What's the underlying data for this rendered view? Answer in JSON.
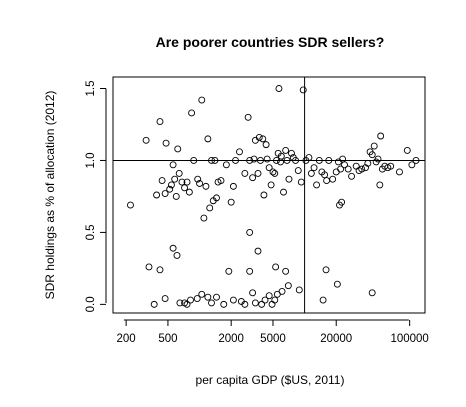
{
  "chart_data": {
    "type": "scatter",
    "title": "Are poorer countries SDR sellers?",
    "xlabel": "per capita GDP ($US, 2011)",
    "ylabel": "SDR holdings as % of allocation (2012)",
    "x_scale": "log",
    "xlim": [
      150,
      140000
    ],
    "ylim": [
      -0.06,
      1.58
    ],
    "x_ticks": [
      200,
      500,
      2000,
      5000,
      20000,
      100000
    ],
    "x_tick_labels": [
      "200",
      "500",
      "2000",
      "5000",
      "20000",
      "100000"
    ],
    "y_ticks": [
      0.0,
      0.5,
      1.0,
      1.5
    ],
    "y_tick_labels": [
      "0.0",
      "0.5",
      "1.0",
      "1.5"
    ],
    "reference_lines": {
      "horizontal_y": 1.0,
      "vertical_x": 10000
    },
    "grid": false,
    "legend": "none",
    "marker": "open-circle",
    "points": [
      [
        220,
        0.69
      ],
      [
        310,
        1.14
      ],
      [
        390,
        0.76
      ],
      [
        420,
        1.27
      ],
      [
        440,
        0.86
      ],
      [
        470,
        0.77
      ],
      [
        480,
        1.12
      ],
      [
        520,
        0.8
      ],
      [
        540,
        0.83
      ],
      [
        560,
        0.97
      ],
      [
        580,
        0.87
      ],
      [
        600,
        0.75
      ],
      [
        620,
        1.08
      ],
      [
        640,
        0.91
      ],
      [
        680,
        0.85
      ],
      [
        720,
        0.81
      ],
      [
        760,
        0.85
      ],
      [
        800,
        0.78
      ],
      [
        840,
        1.33
      ],
      [
        880,
        1.0
      ],
      [
        960,
        0.87
      ],
      [
        1000,
        0.84
      ],
      [
        1050,
        1.42
      ],
      [
        1100,
        0.6
      ],
      [
        1150,
        0.82
      ],
      [
        1200,
        1.15
      ],
      [
        1250,
        0.67
      ],
      [
        1300,
        1.0
      ],
      [
        1350,
        0.72
      ],
      [
        1400,
        1.0
      ],
      [
        1450,
        0.74
      ],
      [
        1500,
        0.85
      ],
      [
        1600,
        0.86
      ],
      [
        1800,
        0.97
      ],
      [
        2000,
        0.71
      ],
      [
        2100,
        0.82
      ],
      [
        2200,
        1.0
      ],
      [
        2400,
        1.06
      ],
      [
        2700,
        0.91
      ],
      [
        2900,
        1.3
      ],
      [
        3000,
        1.0
      ],
      [
        3200,
        0.88
      ],
      [
        3300,
        1.01
      ],
      [
        3400,
        1.14
      ],
      [
        3600,
        0.91
      ],
      [
        3700,
        1.16
      ],
      [
        3800,
        1.0
      ],
      [
        4000,
        1.15
      ],
      [
        4100,
        0.76
      ],
      [
        4300,
        1.11
      ],
      [
        4400,
        1.01
      ],
      [
        4600,
        0.95
      ],
      [
        4800,
        0.83
      ],
      [
        5000,
        0.92
      ],
      [
        5200,
        0.91
      ],
      [
        5400,
        1.0
      ],
      [
        5600,
        1.05
      ],
      [
        5700,
        1.5
      ],
      [
        5900,
        0.99
      ],
      [
        6000,
        1.03
      ],
      [
        6300,
        0.78
      ],
      [
        6600,
        1.07
      ],
      [
        6800,
        1.0
      ],
      [
        7100,
        0.87
      ],
      [
        7500,
        1.05
      ],
      [
        7800,
        1.02
      ],
      [
        8200,
        1.0
      ],
      [
        8700,
        0.93
      ],
      [
        9300,
        0.85
      ],
      [
        9700,
        1.49
      ],
      [
        10300,
        1.0
      ],
      [
        11000,
        1.02
      ],
      [
        11600,
        0.91
      ],
      [
        12300,
        0.95
      ],
      [
        13000,
        0.83
      ],
      [
        13800,
        1.0
      ],
      [
        14600,
        0.92
      ],
      [
        15500,
        0.9
      ],
      [
        16200,
        0.86
      ],
      [
        17000,
        1.0
      ],
      [
        18500,
        0.87
      ],
      [
        20000,
        0.92
      ],
      [
        21000,
        0.99
      ],
      [
        22000,
        0.94
      ],
      [
        23000,
        1.01
      ],
      [
        24000,
        0.97
      ],
      [
        26000,
        0.94
      ],
      [
        28000,
        0.89
      ],
      [
        31000,
        0.96
      ],
      [
        33000,
        0.93
      ],
      [
        35000,
        0.94
      ],
      [
        38000,
        0.95
      ],
      [
        40000,
        0.98
      ],
      [
        42000,
        1.06
      ],
      [
        44000,
        1.04
      ],
      [
        46000,
        1.1
      ],
      [
        48000,
        0.99
      ],
      [
        50000,
        1.01
      ],
      [
        52000,
        0.83
      ],
      [
        53000,
        1.17
      ],
      [
        55000,
        0.94
      ],
      [
        58000,
        0.96
      ],
      [
        62000,
        0.95
      ],
      [
        66000,
        0.96
      ],
      [
        80000,
        0.92
      ],
      [
        95000,
        1.07
      ],
      [
        105000,
        0.97
      ],
      [
        115000,
        1.0
      ],
      [
        330,
        0.26
      ],
      [
        420,
        0.24
      ],
      [
        560,
        0.39
      ],
      [
        610,
        0.34
      ],
      [
        370,
        0.0
      ],
      [
        470,
        0.04
      ],
      [
        650,
        0.01
      ],
      [
        720,
        0.01
      ],
      [
        760,
        0.0
      ],
      [
        820,
        0.03
      ],
      [
        950,
        0.04
      ],
      [
        1050,
        0.07
      ],
      [
        1200,
        0.05
      ],
      [
        1300,
        0.01
      ],
      [
        1450,
        0.05
      ],
      [
        1700,
        0.0
      ],
      [
        1900,
        0.23
      ],
      [
        2100,
        0.03
      ],
      [
        2500,
        0.02
      ],
      [
        2700,
        0.0
      ],
      [
        3000,
        0.23
      ],
      [
        3200,
        0.08
      ],
      [
        3400,
        0.01
      ],
      [
        3900,
        0.0
      ],
      [
        4200,
        0.03
      ],
      [
        4600,
        0.06
      ],
      [
        4900,
        0.0
      ],
      [
        5200,
        0.03
      ],
      [
        5500,
        0.07
      ],
      [
        6100,
        0.09
      ],
      [
        7000,
        0.13
      ],
      [
        5300,
        0.26
      ],
      [
        6600,
        0.23
      ],
      [
        8900,
        0.1
      ],
      [
        3000,
        0.5
      ],
      [
        3600,
        0.37
      ],
      [
        15000,
        0.03
      ],
      [
        16000,
        0.24
      ],
      [
        20500,
        0.14
      ],
      [
        21500,
        0.69
      ],
      [
        22500,
        0.71
      ],
      [
        44000,
        0.08
      ]
    ]
  }
}
